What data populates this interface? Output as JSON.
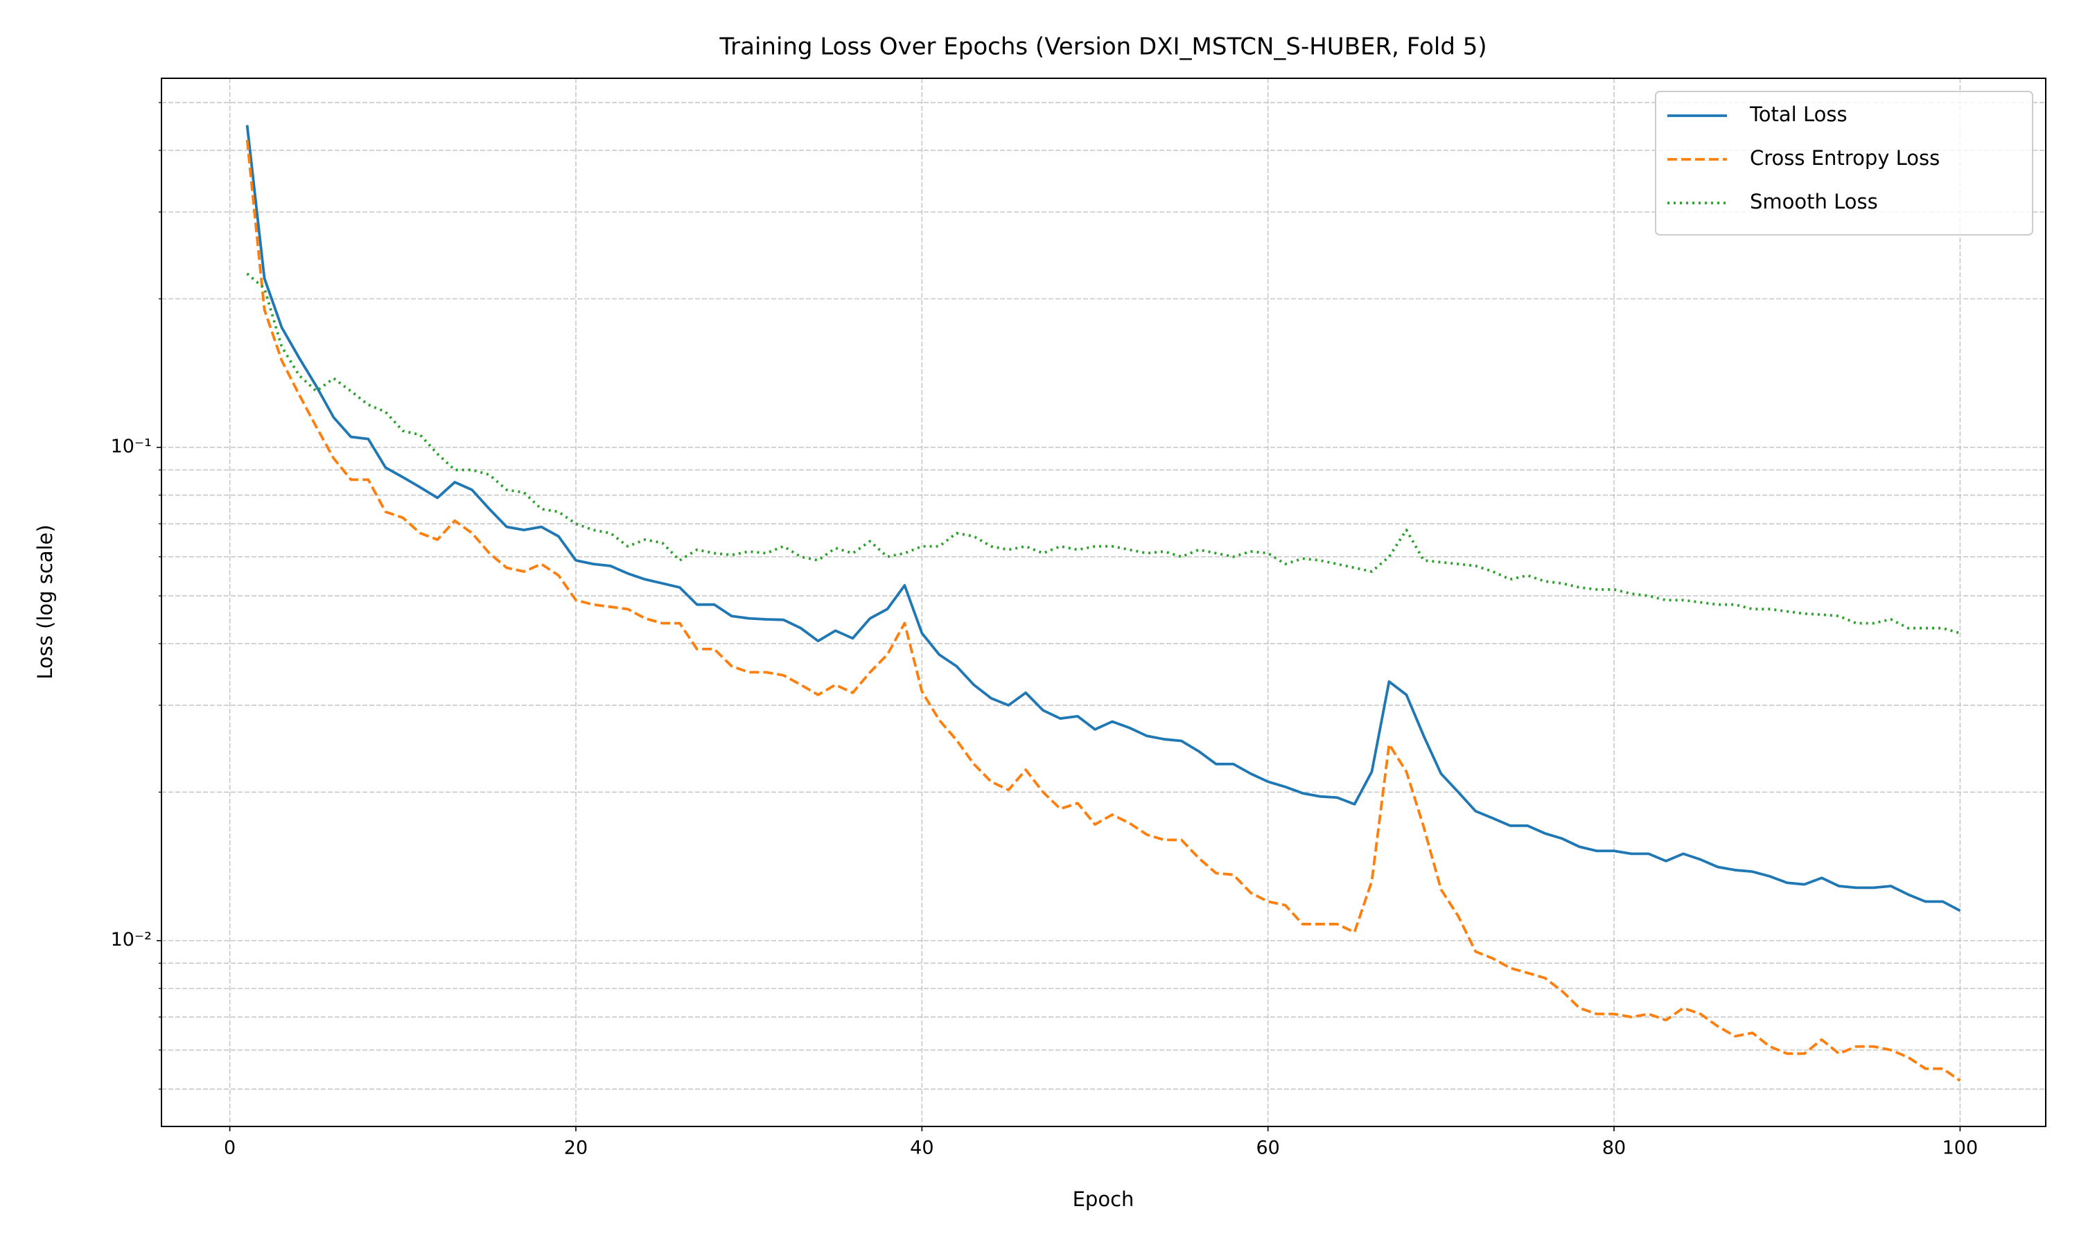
{
  "chart_data": {
    "type": "line",
    "title": "Training Loss Over Epochs (Version DXI_MSTCN_S-HUBER, Fold 5)",
    "x_label": "Epoch",
    "y_label": "Loss (log scale)",
    "yscale": "log",
    "grid": true,
    "legend": "upper right",
    "x": [
      1,
      2,
      3,
      4,
      5,
      6,
      7,
      8,
      9,
      10,
      11,
      12,
      13,
      14,
      15,
      16,
      17,
      18,
      19,
      20,
      21,
      22,
      23,
      24,
      25,
      26,
      27,
      28,
      29,
      30,
      31,
      32,
      33,
      34,
      35,
      36,
      37,
      38,
      39,
      40,
      41,
      42,
      43,
      44,
      45,
      46,
      47,
      48,
      49,
      50,
      51,
      52,
      53,
      54,
      55,
      56,
      57,
      58,
      59,
      60,
      61,
      62,
      63,
      64,
      65,
      66,
      67,
      68,
      69,
      70,
      71,
      72,
      73,
      74,
      75,
      76,
      77,
      78,
      79,
      80,
      81,
      82,
      83,
      84,
      85,
      86,
      87,
      88,
      89,
      90,
      91,
      92,
      93,
      94,
      95,
      96,
      97,
      98,
      99,
      100
    ],
    "xlim": [
      -3.95,
      104.95
    ],
    "xticks": [
      0,
      20,
      40,
      60,
      80,
      100
    ],
    "ylim": [
      0.0042,
      0.56
    ],
    "yticks": [
      {
        "value": 0.01,
        "label": "10⁻²"
      },
      {
        "value": 0.1,
        "label": "10⁻¹"
      }
    ],
    "yminorticks": [
      0.005,
      0.006,
      0.007,
      0.008,
      0.009,
      0.02,
      0.03,
      0.04,
      0.05,
      0.06,
      0.07,
      0.08,
      0.09,
      0.2,
      0.3,
      0.4,
      0.5
    ],
    "series": [
      {
        "name": "Total Loss",
        "color": "#1f77b4",
        "linestyle": "solid",
        "values": [
          0.45,
          0.22,
          0.175,
          0.152,
          0.133,
          0.115,
          0.105,
          0.104,
          0.091,
          0.087,
          0.083,
          0.079,
          0.085,
          0.082,
          0.075,
          0.069,
          0.068,
          0.069,
          0.066,
          0.059,
          0.058,
          0.0575,
          0.0555,
          0.054,
          0.053,
          0.052,
          0.048,
          0.048,
          0.0455,
          0.045,
          0.0448,
          0.0447,
          0.043,
          0.0405,
          0.0425,
          0.041,
          0.045,
          0.047,
          0.0525,
          0.042,
          0.038,
          0.036,
          0.033,
          0.031,
          0.03,
          0.0318,
          0.0293,
          0.0282,
          0.0285,
          0.0268,
          0.0278,
          0.027,
          0.026,
          0.0256,
          0.0254,
          0.0242,
          0.0228,
          0.0228,
          0.0218,
          0.021,
          0.0205,
          0.0199,
          0.0196,
          0.0195,
          0.0189,
          0.022,
          0.0335,
          0.0315,
          0.026,
          0.0218,
          0.02,
          0.0183,
          0.0177,
          0.0171,
          0.0171,
          0.0165,
          0.0161,
          0.0155,
          0.0152,
          0.0152,
          0.015,
          0.015,
          0.0145,
          0.015,
          0.0146,
          0.0141,
          0.0139,
          0.0138,
          0.0135,
          0.0131,
          0.013,
          0.0134,
          0.0129,
          0.0128,
          0.0128,
          0.0129,
          0.0124,
          0.012,
          0.012,
          0.0115
        ]
      },
      {
        "name": "Cross Entropy Loss",
        "color": "#ff7f0e",
        "linestyle": "dashed",
        "values": [
          0.42,
          0.19,
          0.15,
          0.128,
          0.11,
          0.095,
          0.086,
          0.086,
          0.074,
          0.072,
          0.067,
          0.065,
          0.071,
          0.067,
          0.061,
          0.057,
          0.056,
          0.058,
          0.055,
          0.049,
          0.048,
          0.0475,
          0.047,
          0.045,
          0.044,
          0.044,
          0.039,
          0.039,
          0.036,
          0.035,
          0.035,
          0.0345,
          0.033,
          0.0315,
          0.033,
          0.0318,
          0.035,
          0.038,
          0.044,
          0.032,
          0.028,
          0.0255,
          0.0228,
          0.021,
          0.0202,
          0.0222,
          0.02,
          0.0185,
          0.019,
          0.0172,
          0.018,
          0.0173,
          0.0164,
          0.016,
          0.016,
          0.0147,
          0.0137,
          0.0136,
          0.0125,
          0.012,
          0.0118,
          0.0108,
          0.0108,
          0.0108,
          0.0104,
          0.0132,
          0.025,
          0.022,
          0.017,
          0.0127,
          0.0112,
          0.0095,
          0.0092,
          0.0088,
          0.0086,
          0.0084,
          0.0079,
          0.0073,
          0.0071,
          0.0071,
          0.007,
          0.0071,
          0.0069,
          0.0073,
          0.0071,
          0.0067,
          0.0064,
          0.0065,
          0.0061,
          0.0059,
          0.0059,
          0.0063,
          0.0059,
          0.0061,
          0.0061,
          0.006,
          0.0058,
          0.0055,
          0.0055,
          0.0052
        ]
      },
      {
        "name": "Smooth Loss",
        "color": "#2ca02c",
        "linestyle": "dotted",
        "values": [
          0.225,
          0.21,
          0.16,
          0.14,
          0.13,
          0.138,
          0.13,
          0.122,
          0.118,
          0.108,
          0.106,
          0.097,
          0.09,
          0.09,
          0.088,
          0.082,
          0.081,
          0.075,
          0.074,
          0.07,
          0.068,
          0.067,
          0.063,
          0.065,
          0.064,
          0.059,
          0.062,
          0.061,
          0.0605,
          0.0615,
          0.061,
          0.063,
          0.06,
          0.059,
          0.0625,
          0.061,
          0.0645,
          0.06,
          0.061,
          0.063,
          0.063,
          0.067,
          0.066,
          0.063,
          0.062,
          0.063,
          0.061,
          0.063,
          0.062,
          0.063,
          0.063,
          0.062,
          0.061,
          0.0615,
          0.06,
          0.062,
          0.061,
          0.06,
          0.0615,
          0.061,
          0.058,
          0.0595,
          0.059,
          0.058,
          0.057,
          0.056,
          0.06,
          0.068,
          0.059,
          0.0585,
          0.058,
          0.0575,
          0.056,
          0.054,
          0.055,
          0.0535,
          0.053,
          0.052,
          0.0515,
          0.0515,
          0.0505,
          0.05,
          0.049,
          0.049,
          0.0485,
          0.048,
          0.048,
          0.047,
          0.047,
          0.0465,
          0.046,
          0.0458,
          0.0455,
          0.044,
          0.044,
          0.0448,
          0.043,
          0.043,
          0.043,
          0.042
        ]
      }
    ]
  }
}
